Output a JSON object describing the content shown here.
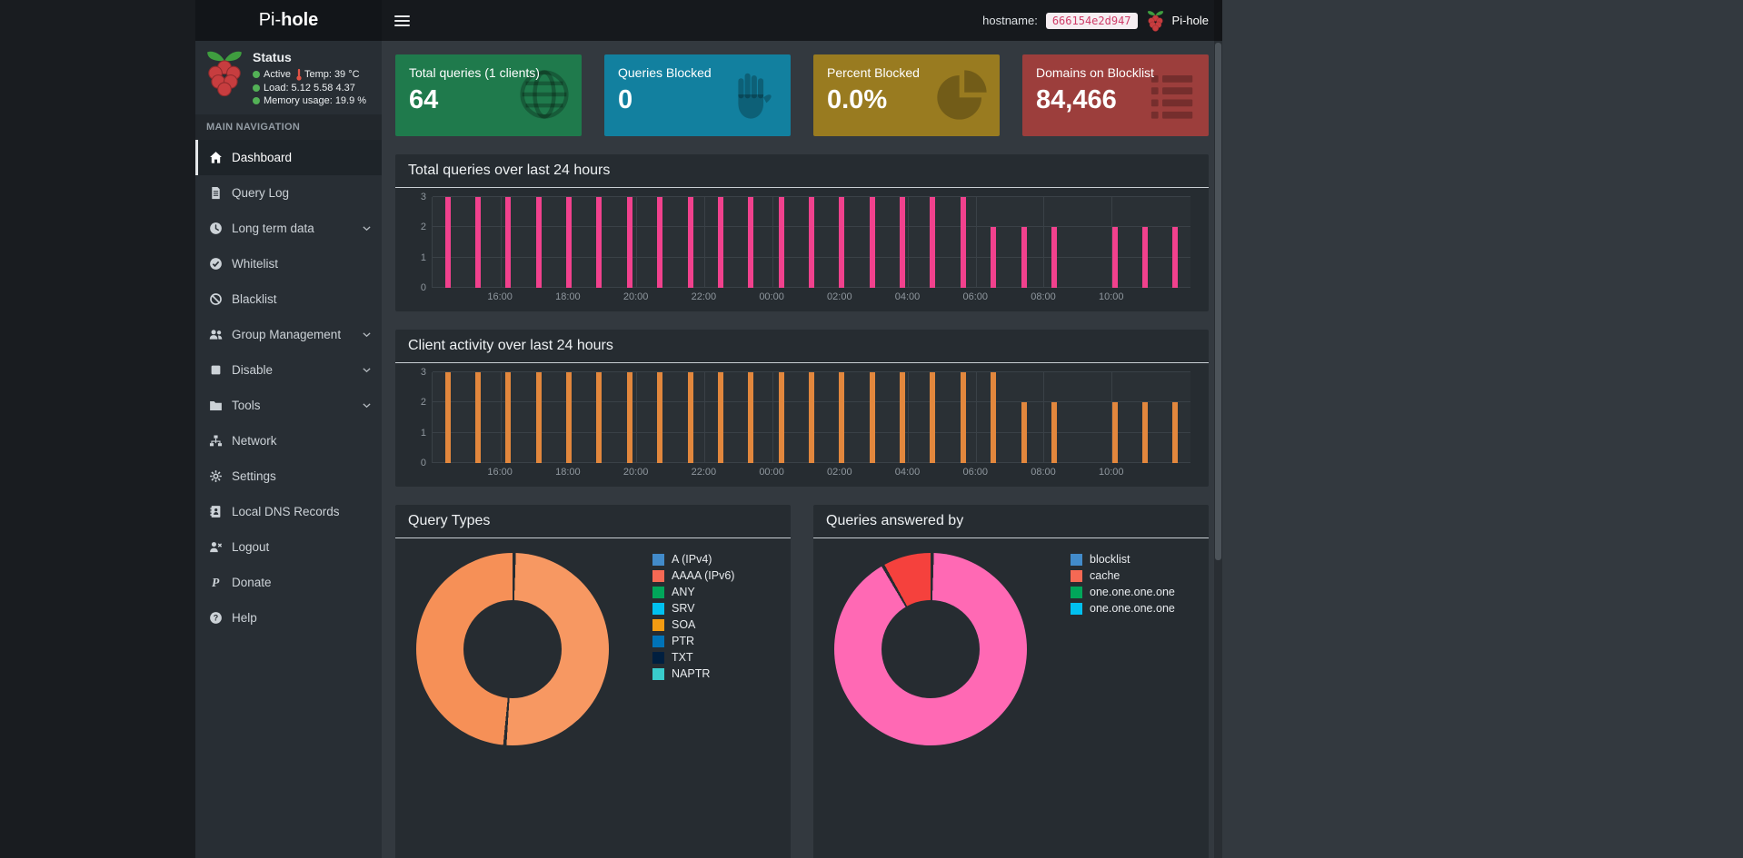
{
  "navbar": {
    "brand_prefix": "Pi-",
    "brand_bold": "hole",
    "hostname_label": "hostname:",
    "hostname_value": "666154e2d947",
    "user_label": "Pi-hole"
  },
  "sidebar": {
    "status": {
      "title": "Status",
      "active_label": "Active",
      "temp_label": "Temp:",
      "temp_value": "39 °C",
      "load_label": "Load:",
      "load_value": "5.12 5.58 4.37",
      "memory_label": "Memory usage:",
      "memory_value": "19.9 %"
    },
    "nav_header": "MAIN NAVIGATION",
    "items": [
      {
        "label": "Dashboard",
        "icon": "home-icon",
        "active": true,
        "expandable": false
      },
      {
        "label": "Query Log",
        "icon": "file-icon",
        "active": false,
        "expandable": false
      },
      {
        "label": "Long term data",
        "icon": "clock-icon",
        "active": false,
        "expandable": true
      },
      {
        "label": "Whitelist",
        "icon": "check-circle-icon",
        "active": false,
        "expandable": false
      },
      {
        "label": "Blacklist",
        "icon": "ban-icon",
        "active": false,
        "expandable": false
      },
      {
        "label": "Group Management",
        "icon": "users-icon",
        "active": false,
        "expandable": true
      },
      {
        "label": "Disable",
        "icon": "stop-icon",
        "active": false,
        "expandable": true
      },
      {
        "label": "Tools",
        "icon": "folder-icon",
        "active": false,
        "expandable": true
      },
      {
        "label": "Network",
        "icon": "network-icon",
        "active": false,
        "expandable": false
      },
      {
        "label": "Settings",
        "icon": "gears-icon",
        "active": false,
        "expandable": false
      },
      {
        "label": "Local DNS Records",
        "icon": "address-book-icon",
        "active": false,
        "expandable": false
      },
      {
        "label": "Logout",
        "icon": "logout-icon",
        "active": false,
        "expandable": false
      },
      {
        "label": "Donate",
        "icon": "paypal-icon",
        "active": false,
        "expandable": false
      },
      {
        "label": "Help",
        "icon": "question-icon",
        "active": false,
        "expandable": false
      }
    ]
  },
  "cards": [
    {
      "title": "Total queries (1 clients)",
      "value": "64",
      "color": "#1f7a4c",
      "icon": "globe-icon"
    },
    {
      "title": "Queries Blocked",
      "value": "0",
      "color": "#12809f",
      "icon": "hand-icon"
    },
    {
      "title": "Percent Blocked",
      "value": "0.0%",
      "color": "#997b20",
      "icon": "pie-chart-icon"
    },
    {
      "title": "Domains on Blocklist",
      "value": "84,466",
      "color": "#9c3e3c",
      "icon": "list-icon"
    }
  ],
  "chart_data": [
    {
      "type": "bar",
      "title": "Total queries over last 24 hours",
      "xlabel": "",
      "ylabel": "",
      "ylim": [
        0,
        3
      ],
      "yticks": [
        3,
        2,
        1,
        0
      ],
      "grid": true,
      "xticks": [
        "16:00",
        "18:00",
        "20:00",
        "22:00",
        "00:00",
        "02:00",
        "04:00",
        "06:00",
        "08:00",
        "10:00"
      ],
      "series": [
        {
          "name": "Total queries",
          "color": "#f1418d",
          "values": [
            3,
            3,
            3,
            3,
            3,
            3,
            3,
            3,
            3,
            3,
            3,
            3,
            3,
            3,
            3,
            3,
            3,
            3,
            2,
            2,
            2,
            0,
            2,
            2,
            2
          ]
        }
      ]
    },
    {
      "type": "bar",
      "title": "Client activity over last 24 hours",
      "xlabel": "",
      "ylabel": "",
      "ylim": [
        0,
        3
      ],
      "yticks": [
        3,
        2,
        1,
        0
      ],
      "grid": true,
      "xticks": [
        "16:00",
        "18:00",
        "20:00",
        "22:00",
        "00:00",
        "02:00",
        "04:00",
        "06:00",
        "08:00",
        "10:00"
      ],
      "series": [
        {
          "name": "Client activity",
          "color": "#e2873d",
          "values": [
            3,
            3,
            3,
            3,
            3,
            3,
            3,
            3,
            3,
            3,
            3,
            3,
            3,
            3,
            3,
            3,
            3,
            3,
            3,
            2,
            2,
            0,
            2,
            2,
            2
          ]
        }
      ]
    },
    {
      "type": "pie",
      "title": "Query Types",
      "legend_position": "right",
      "slices": [
        {
          "label": "A (IPv4)",
          "value": 51,
          "color": "#f79862"
        },
        {
          "label": "AAAA (IPv6)",
          "value": 49,
          "color": "#f69057"
        }
      ],
      "legend": [
        {
          "label": "A (IPv4)",
          "color": "#428bca"
        },
        {
          "label": "AAAA (IPv6)",
          "color": "#f56954"
        },
        {
          "label": "ANY",
          "color": "#00a65a"
        },
        {
          "label": "SRV",
          "color": "#00c0ef"
        },
        {
          "label": "SOA",
          "color": "#f39c12"
        },
        {
          "label": "PTR",
          "color": "#0073b7"
        },
        {
          "label": "TXT",
          "color": "#001f3f"
        },
        {
          "label": "NAPTR",
          "color": "#39cccc"
        }
      ]
    },
    {
      "type": "pie",
      "title": "Queries answered by",
      "legend_position": "right",
      "slices": [
        {
          "label": "one.one.one.one",
          "value": 91.5,
          "color": "#ff69b4"
        },
        {
          "label": "cache",
          "value": 8.5,
          "color": "#f5413d"
        }
      ],
      "legend": [
        {
          "label": "blocklist",
          "color": "#428bca"
        },
        {
          "label": "cache",
          "color": "#f56954"
        },
        {
          "label": "one.one.one.one",
          "color": "#00a65a"
        },
        {
          "label": "one.one.one.one",
          "color": "#00c0ef"
        }
      ]
    }
  ]
}
